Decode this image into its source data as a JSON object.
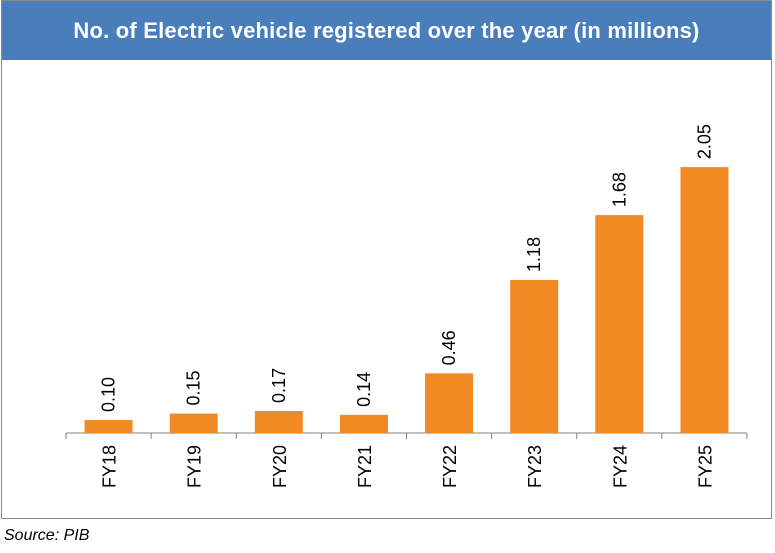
{
  "chart_data": {
    "type": "bar",
    "title": "No. of Electric vehicle registered over the year (in millions)",
    "categories": [
      "FY18",
      "FY19",
      "FY20",
      "FY21",
      "FY22",
      "FY23",
      "FY24",
      "FY25"
    ],
    "values": [
      0.1,
      0.15,
      0.17,
      0.14,
      0.46,
      1.18,
      1.68,
      2.05
    ],
    "data_labels": [
      "0.10",
      "0.15",
      "0.17",
      "0.14",
      "0.46",
      "1.18",
      "1.68",
      "2.05"
    ],
    "xlabel": "",
    "ylabel": "",
    "ylim": [
      0,
      2.2
    ],
    "grid": false,
    "bar_color": "#f28a24",
    "title_bar_color": "#4a7ebb"
  },
  "footer": {
    "source": "Source: PIB"
  }
}
